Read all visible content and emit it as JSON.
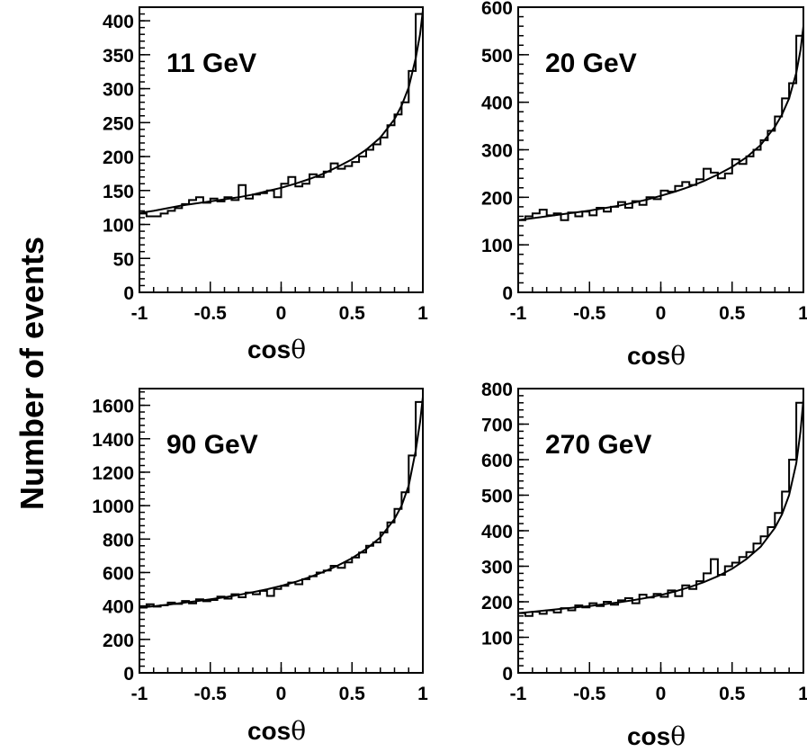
{
  "figure": {
    "ylabel": "Number of events"
  },
  "chart_data": [
    {
      "type": "line",
      "panel_label": "11 GeV",
      "xlabel": "cos",
      "xlabel_symbol": "θ",
      "xlim": [
        -1,
        1
      ],
      "ylim": [
        0,
        420
      ],
      "x_ticks": [
        -1,
        -0.5,
        0,
        0.5,
        1
      ],
      "x_tick_labels": [
        "-1",
        "-0.5",
        "0",
        "0.5",
        "1"
      ],
      "y_ticks": [
        0,
        50,
        100,
        150,
        200,
        250,
        300,
        350,
        400
      ],
      "y_tick_labels": [
        "0",
        "50",
        "100",
        "150",
        "200",
        "250",
        "300",
        "350",
        "400"
      ],
      "series": [
        {
          "style": "histogram",
          "bin_edges": [
            -1,
            -0.95,
            -0.9,
            -0.85,
            -0.8,
            -0.75,
            -0.7,
            -0.65,
            -0.6,
            -0.55,
            -0.5,
            -0.45,
            -0.4,
            -0.35,
            -0.3,
            -0.25,
            -0.2,
            -0.15,
            -0.1,
            -0.05,
            0,
            0.05,
            0.1,
            0.15,
            0.2,
            0.25,
            0.3,
            0.35,
            0.4,
            0.45,
            0.5,
            0.55,
            0.6,
            0.65,
            0.7,
            0.75,
            0.8,
            0.85,
            0.9,
            0.95,
            1
          ],
          "values": [
            116,
            112,
            112,
            116,
            120,
            124,
            130,
            136,
            140,
            132,
            138,
            134,
            140,
            136,
            158,
            138,
            144,
            146,
            150,
            140,
            160,
            170,
            156,
            160,
            174,
            170,
            178,
            190,
            182,
            186,
            192,
            200,
            210,
            218,
            228,
            246,
            262,
            280,
            326,
            410
          ]
        },
        {
          "style": "fit",
          "x": [
            -1,
            -0.9,
            -0.8,
            -0.7,
            -0.6,
            -0.5,
            -0.4,
            -0.3,
            -0.2,
            -0.1,
            0,
            0.1,
            0.2,
            0.3,
            0.4,
            0.5,
            0.6,
            0.7,
            0.8,
            0.85,
            0.9,
            0.95,
            0.98,
            1
          ],
          "values": [
            117,
            120,
            124,
            128,
            131,
            134,
            137,
            140,
            144,
            149,
            154,
            160,
            167,
            175,
            185,
            196,
            210,
            228,
            255,
            275,
            302,
            345,
            380,
            415
          ]
        }
      ]
    },
    {
      "type": "line",
      "panel_label": "20 GeV",
      "xlabel": "cos",
      "xlabel_symbol": "θ",
      "xlim": [
        -1,
        1
      ],
      "ylim": [
        0,
        600
      ],
      "x_ticks": [
        -1,
        -0.5,
        0,
        0.5,
        1
      ],
      "x_tick_labels": [
        "-1",
        "-0.5",
        "0",
        "0.5",
        "1"
      ],
      "y_ticks": [
        0,
        100,
        200,
        300,
        400,
        500,
        600
      ],
      "y_tick_labels": [
        "0",
        "100",
        "200",
        "300",
        "400",
        "500",
        "600"
      ],
      "series": [
        {
          "style": "histogram",
          "bin_edges": [
            -1,
            -0.95,
            -0.9,
            -0.85,
            -0.8,
            -0.75,
            -0.7,
            -0.65,
            -0.6,
            -0.55,
            -0.5,
            -0.45,
            -0.4,
            -0.35,
            -0.3,
            -0.25,
            -0.2,
            -0.15,
            -0.1,
            -0.05,
            0,
            0.05,
            0.1,
            0.15,
            0.2,
            0.25,
            0.3,
            0.35,
            0.4,
            0.45,
            0.5,
            0.55,
            0.6,
            0.65,
            0.7,
            0.75,
            0.8,
            0.85,
            0.9,
            0.95,
            1
          ],
          "values": [
            152,
            160,
            166,
            174,
            162,
            166,
            152,
            168,
            160,
            170,
            162,
            178,
            170,
            180,
            190,
            178,
            192,
            184,
            200,
            196,
            214,
            212,
            224,
            232,
            226,
            238,
            260,
            252,
            240,
            250,
            280,
            270,
            286,
            300,
            320,
            340,
            370,
            408,
            440,
            540
          ]
        },
        {
          "style": "fit",
          "x": [
            -1,
            -0.9,
            -0.8,
            -0.7,
            -0.6,
            -0.5,
            -0.4,
            -0.3,
            -0.2,
            -0.1,
            0,
            0.1,
            0.2,
            0.3,
            0.4,
            0.5,
            0.6,
            0.7,
            0.8,
            0.85,
            0.9,
            0.95,
            0.98,
            1
          ],
          "values": [
            152,
            156,
            160,
            164,
            168,
            172,
            177,
            182,
            188,
            195,
            203,
            212,
            222,
            234,
            248,
            264,
            284,
            310,
            348,
            374,
            408,
            462,
            510,
            560
          ]
        }
      ]
    },
    {
      "type": "line",
      "panel_label": "90 GeV",
      "xlabel": "cos",
      "xlabel_symbol": "θ",
      "xlim": [
        -1,
        1
      ],
      "ylim": [
        0,
        1700
      ],
      "x_ticks": [
        -1,
        -0.5,
        0,
        0.5,
        1
      ],
      "x_tick_labels": [
        "-1",
        "-0.5",
        "0",
        "0.5",
        "1"
      ],
      "y_ticks": [
        0,
        200,
        400,
        600,
        800,
        1000,
        1200,
        1400,
        1600
      ],
      "y_tick_labels": [
        "0",
        "200",
        "400",
        "600",
        "800",
        "1000",
        "1200",
        "1400",
        "1600"
      ],
      "series": [
        {
          "style": "histogram",
          "bin_edges": [
            -1,
            -0.95,
            -0.9,
            -0.85,
            -0.8,
            -0.75,
            -0.7,
            -0.65,
            -0.6,
            -0.55,
            -0.5,
            -0.45,
            -0.4,
            -0.35,
            -0.3,
            -0.25,
            -0.2,
            -0.15,
            -0.1,
            -0.05,
            0,
            0.05,
            0.1,
            0.15,
            0.2,
            0.25,
            0.3,
            0.35,
            0.4,
            0.45,
            0.5,
            0.55,
            0.6,
            0.65,
            0.7,
            0.75,
            0.8,
            0.85,
            0.9,
            0.95,
            1
          ],
          "values": [
            390,
            410,
            396,
            404,
            420,
            412,
            430,
            416,
            440,
            428,
            436,
            456,
            444,
            470,
            452,
            480,
            470,
            490,
            460,
            502,
            520,
            540,
            530,
            560,
            578,
            600,
            612,
            640,
            628,
            660,
            690,
            720,
            760,
            780,
            840,
            900,
            980,
            1080,
            1300,
            1620
          ]
        },
        {
          "style": "fit",
          "x": [
            -1,
            -0.9,
            -0.8,
            -0.7,
            -0.6,
            -0.5,
            -0.4,
            -0.3,
            -0.2,
            -0.1,
            0,
            0.1,
            0.2,
            0.3,
            0.4,
            0.5,
            0.6,
            0.7,
            0.8,
            0.85,
            0.9,
            0.95,
            0.98,
            1
          ],
          "values": [
            390,
            398,
            408,
            418,
            428,
            440,
            452,
            466,
            482,
            500,
            520,
            544,
            572,
            604,
            642,
            686,
            740,
            810,
            920,
            1000,
            1120,
            1330,
            1500,
            1650
          ]
        }
      ]
    },
    {
      "type": "line",
      "panel_label": "270 GeV",
      "xlabel": "cos",
      "xlabel_symbol": "θ",
      "xlim": [
        -1,
        1
      ],
      "ylim": [
        0,
        800
      ],
      "x_ticks": [
        -1,
        -0.5,
        0,
        0.5,
        1
      ],
      "x_tick_labels": [
        "-1",
        "-0.5",
        "0",
        "0.5",
        "1"
      ],
      "y_ticks": [
        0,
        100,
        200,
        300,
        400,
        500,
        600,
        700,
        800
      ],
      "y_tick_labels": [
        "0",
        "100",
        "200",
        "300",
        "400",
        "500",
        "600",
        "700",
        "800"
      ],
      "series": [
        {
          "style": "histogram",
          "bin_edges": [
            -1,
            -0.95,
            -0.9,
            -0.85,
            -0.8,
            -0.75,
            -0.7,
            -0.65,
            -0.6,
            -0.55,
            -0.5,
            -0.45,
            -0.4,
            -0.35,
            -0.3,
            -0.25,
            -0.2,
            -0.15,
            -0.1,
            -0.05,
            0,
            0.05,
            0.1,
            0.15,
            0.2,
            0.25,
            0.3,
            0.35,
            0.4,
            0.45,
            0.5,
            0.55,
            0.6,
            0.65,
            0.7,
            0.75,
            0.8,
            0.85,
            0.9,
            0.95,
            1
          ],
          "values": [
            168,
            160,
            172,
            166,
            176,
            170,
            182,
            176,
            190,
            184,
            196,
            188,
            200,
            192,
            204,
            210,
            196,
            220,
            212,
            222,
            214,
            232,
            216,
            246,
            236,
            258,
            280,
            320,
            276,
            300,
            310,
            326,
            340,
            364,
            384,
            410,
            450,
            510,
            600,
            760
          ]
        },
        {
          "style": "fit",
          "x": [
            -1,
            -0.9,
            -0.8,
            -0.7,
            -0.6,
            -0.5,
            -0.4,
            -0.3,
            -0.2,
            -0.1,
            0,
            0.1,
            0.2,
            0.3,
            0.4,
            0.5,
            0.6,
            0.7,
            0.8,
            0.85,
            0.9,
            0.95,
            0.98,
            1
          ],
          "values": [
            168,
            172,
            176,
            180,
            184,
            188,
            193,
            198,
            204,
            211,
            219,
            229,
            241,
            255,
            272,
            293,
            320,
            355,
            408,
            446,
            500,
            590,
            680,
            770
          ]
        }
      ]
    }
  ]
}
